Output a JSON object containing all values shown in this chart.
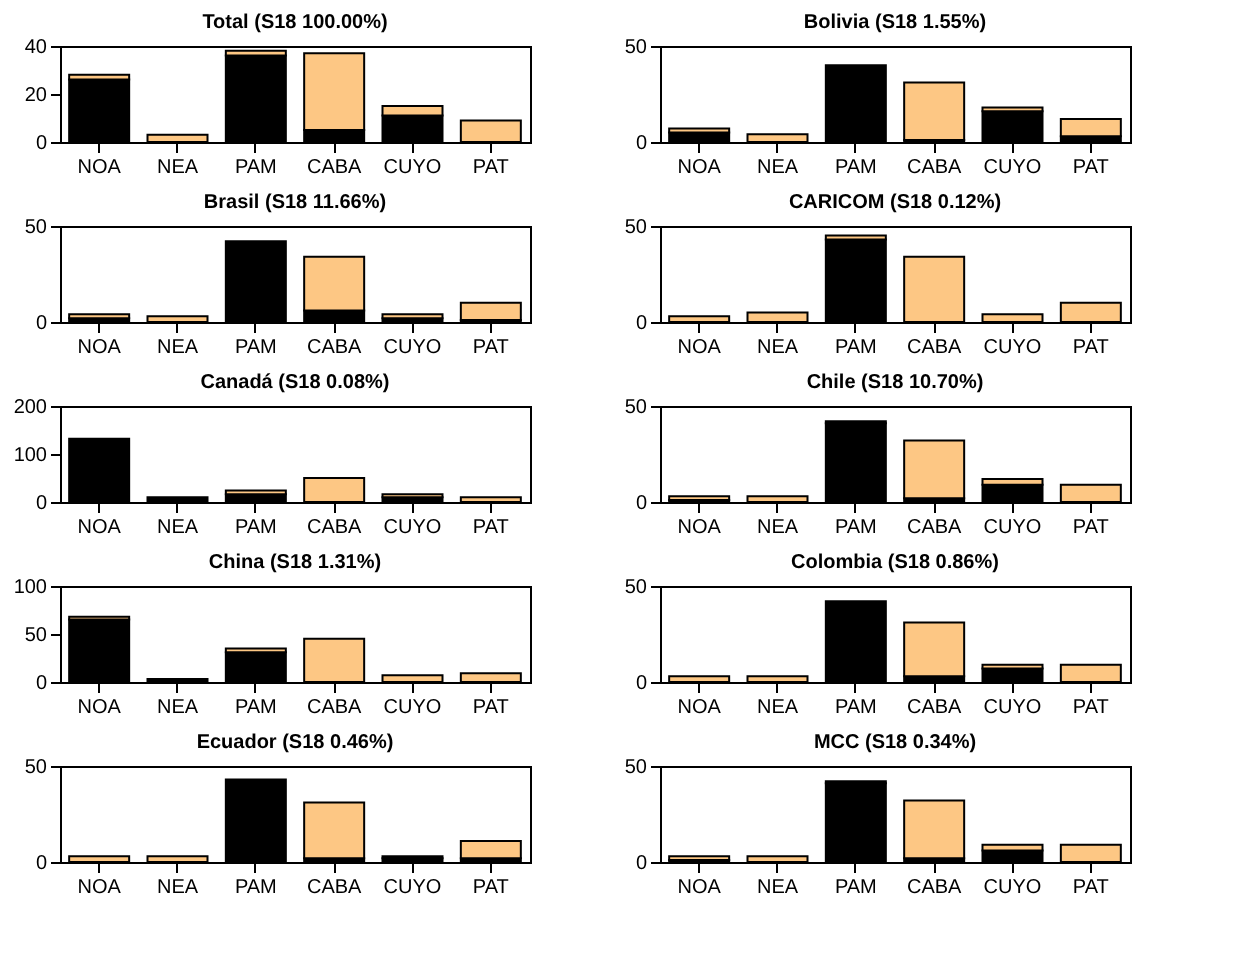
{
  "chart_data": [
    {
      "type": "bar",
      "title": "Total (S18 100.00%)",
      "categories": [
        "NOA",
        "NEA",
        "PAM",
        "CABA",
        "CUYO",
        "PAT"
      ],
      "stacked": true,
      "ylim": [
        0,
        40
      ],
      "yticks": [
        0,
        20,
        40
      ],
      "grid": false,
      "series": [
        {
          "color": "#000000",
          "values": [
            26,
            null,
            36,
            5,
            11,
            null
          ]
        },
        {
          "color": "#fdc784",
          "values": [
            2,
            3,
            2,
            32,
            4,
            9
          ]
        }
      ]
    },
    {
      "type": "bar",
      "title": "Bolivia (S18 1.55%)",
      "categories": [
        "NOA",
        "NEA",
        "PAM",
        "CABA",
        "CUYO",
        "PAT"
      ],
      "stacked": true,
      "ylim": [
        0,
        50
      ],
      "yticks": [
        0,
        50
      ],
      "grid": false,
      "series": [
        {
          "color": "#000000",
          "values": [
            5,
            null,
            40,
            1,
            16,
            3
          ]
        },
        {
          "color": "#fdc784",
          "values": [
            2,
            4,
            null,
            30,
            2,
            9
          ]
        }
      ]
    },
    {
      "type": "bar",
      "title": "Brasil (S18 11.66%)",
      "categories": [
        "NOA",
        "NEA",
        "PAM",
        "CABA",
        "CUYO",
        "PAT"
      ],
      "stacked": true,
      "ylim": [
        0,
        50
      ],
      "yticks": [
        0,
        50
      ],
      "grid": false,
      "series": [
        {
          "color": "#000000",
          "values": [
            2,
            null,
            42,
            6,
            2,
            1
          ]
        },
        {
          "color": "#fdc784",
          "values": [
            2,
            3,
            null,
            28,
            2,
            9
          ]
        }
      ]
    },
    {
      "type": "bar",
      "title": "CARICOM (S18 0.12%)",
      "categories": [
        "NOA",
        "NEA",
        "PAM",
        "CABA",
        "CUYO",
        "PAT"
      ],
      "stacked": true,
      "ylim": [
        0,
        50
      ],
      "yticks": [
        0,
        50
      ],
      "grid": false,
      "series": [
        {
          "color": "#000000",
          "values": [
            null,
            null,
            43,
            null,
            null,
            null
          ]
        },
        {
          "color": "#fdc784",
          "values": [
            3,
            5,
            2,
            34,
            4,
            10
          ]
        }
      ]
    },
    {
      "type": "bar",
      "title": "Canadá (S18 0.08%)",
      "categories": [
        "NOA",
        "NEA",
        "PAM",
        "CABA",
        "CUYO",
        "PAT"
      ],
      "stacked": true,
      "ylim": [
        0,
        200
      ],
      "yticks": [
        0,
        100,
        200
      ],
      "grid": false,
      "series": [
        {
          "color": "#000000",
          "values": [
            132,
            10,
            16,
            null,
            10,
            null
          ]
        },
        {
          "color": "#fdc784",
          "values": [
            null,
            null,
            8,
            50,
            6,
            10
          ]
        }
      ]
    },
    {
      "type": "bar",
      "title": "Chile (S18 10.70%)",
      "categories": [
        "NOA",
        "NEA",
        "PAM",
        "CABA",
        "CUYO",
        "PAT"
      ],
      "stacked": true,
      "ylim": [
        0,
        50
      ],
      "yticks": [
        0,
        50
      ],
      "grid": false,
      "series": [
        {
          "color": "#000000",
          "values": [
            1,
            null,
            41,
            2,
            9,
            null
          ]
        },
        {
          "color": "#fdc784",
          "values": [
            2,
            3,
            1,
            30,
            3,
            9
          ]
        }
      ]
    },
    {
      "type": "bar",
      "title": "China (S18 1.31%)",
      "categories": [
        "NOA",
        "NEA",
        "PAM",
        "CABA",
        "CUYO",
        "PAT"
      ],
      "stacked": true,
      "ylim": [
        0,
        100
      ],
      "yticks": [
        0,
        50,
        100
      ],
      "grid": false,
      "series": [
        {
          "color": "#000000",
          "values": [
            65,
            3,
            31,
            null,
            null,
            null
          ]
        },
        {
          "color": "#fdc784",
          "values": [
            3,
            null,
            4,
            45,
            7,
            9
          ]
        }
      ]
    },
    {
      "type": "bar",
      "title": "Colombia (S18 0.86%)",
      "categories": [
        "NOA",
        "NEA",
        "PAM",
        "CABA",
        "CUYO",
        "PAT"
      ],
      "stacked": true,
      "ylim": [
        0,
        50
      ],
      "yticks": [
        0,
        50
      ],
      "grid": false,
      "series": [
        {
          "color": "#000000",
          "values": [
            null,
            null,
            42,
            3,
            7,
            null
          ]
        },
        {
          "color": "#fdc784",
          "values": [
            3,
            3,
            null,
            28,
            2,
            9
          ]
        }
      ]
    },
    {
      "type": "bar",
      "title": "Ecuador (S18 0.46%)",
      "categories": [
        "NOA",
        "NEA",
        "PAM",
        "CABA",
        "CUYO",
        "PAT"
      ],
      "stacked": true,
      "ylim": [
        0,
        50
      ],
      "yticks": [
        0,
        50
      ],
      "grid": false,
      "series": [
        {
          "color": "#000000",
          "values": [
            null,
            null,
            43,
            2,
            2,
            2
          ]
        },
        {
          "color": "#fdc784",
          "values": [
            3,
            3,
            null,
            29,
            1,
            9
          ]
        }
      ]
    },
    {
      "type": "bar",
      "title": "MCC (S18 0.34%)",
      "categories": [
        "NOA",
        "NEA",
        "PAM",
        "CABA",
        "CUYO",
        "PAT"
      ],
      "stacked": true,
      "ylim": [
        0,
        50
      ],
      "yticks": [
        0,
        50
      ],
      "grid": false,
      "series": [
        {
          "color": "#000000",
          "values": [
            1,
            null,
            41,
            2,
            6,
            null
          ]
        },
        {
          "color": "#fdc784",
          "values": [
            2,
            3,
            1,
            30,
            3,
            9
          ]
        }
      ]
    }
  ]
}
